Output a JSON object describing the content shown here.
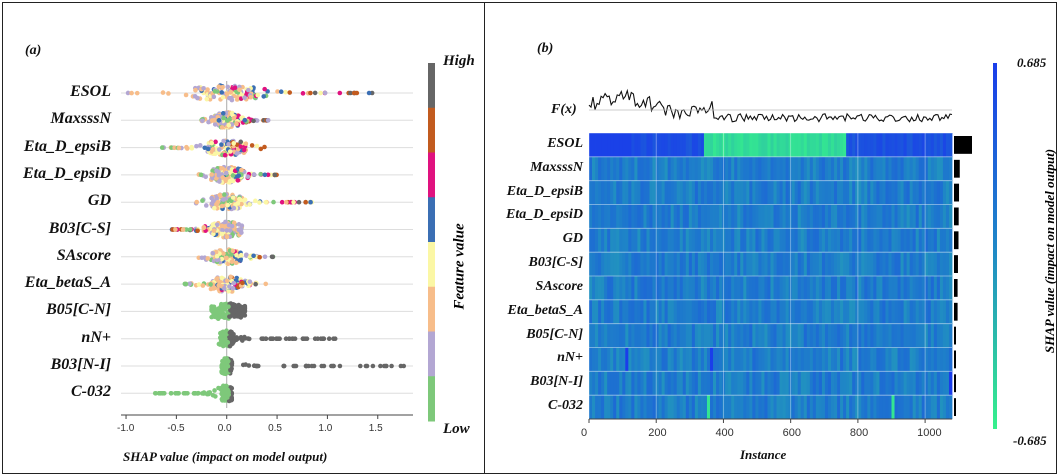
{
  "panel_a": {
    "letter": "(a)",
    "colorbar": {
      "high": "High",
      "low": "Low",
      "title": "Feature value",
      "colors": [
        "#7ec87a",
        "#b3a7d3",
        "#f7bd8a",
        "#fbf7a5",
        "#3b6fb4",
        "#e0127f",
        "#c25b1f",
        "#666666"
      ]
    },
    "chart_data": {
      "type": "scatter",
      "subtype": "shap-beeswarm",
      "xlabel": "SHAP value (impact on model output)",
      "xlim": [
        -1.05,
        1.85
      ],
      "xticks": [
        -1.0,
        -0.5,
        0.0,
        0.5,
        1.0,
        1.5
      ],
      "xtick_labels": [
        "-1.0",
        "-0.5",
        "0.0",
        "0.5",
        "1.0",
        "1.5"
      ],
      "features": [
        {
          "name": "ESOL",
          "min": -0.98,
          "max": 1.48,
          "spread": 0.9
        },
        {
          "name": "MaxsssN",
          "min": -0.25,
          "max": 0.42,
          "spread": 0.35
        },
        {
          "name": "Eta_D_epsiB",
          "min": -0.65,
          "max": 0.38,
          "spread": 0.55
        },
        {
          "name": "Eta_D_epsiD",
          "min": -0.28,
          "max": 0.52,
          "spread": 0.45
        },
        {
          "name": "GD",
          "min": -0.32,
          "max": 0.85,
          "spread": 0.45
        },
        {
          "name": "B03[C-S]",
          "min": -0.55,
          "max": 0.15,
          "spread": 0.45
        },
        {
          "name": "SAscore",
          "min": -0.3,
          "max": 0.48,
          "spread": 0.4
        },
        {
          "name": "Eta_betaS_A",
          "min": -0.42,
          "max": 0.45,
          "spread": 0.45
        },
        {
          "name": "B05[C-N]",
          "min": -0.15,
          "max": 0.18,
          "spread": 0.6
        },
        {
          "name": "nN+",
          "min": -0.08,
          "max": 1.12,
          "spread": 0.2
        },
        {
          "name": "B03[N-I]",
          "min": -0.05,
          "max": 1.78,
          "spread": 0.15
        },
        {
          "name": "C-032",
          "min": -0.72,
          "max": 0.05,
          "spread": 0.15
        }
      ]
    }
  },
  "panel_b": {
    "letter": "(b)",
    "fx_label": "F(x)",
    "colorbar": {
      "max": "0.685",
      "min": "-0.685",
      "title": "SHAP value (impact on model output)",
      "top_color": "#1a3dea",
      "bottom_color": "#36f18c"
    },
    "chart_data": {
      "type": "heatmap",
      "xlabel": "Instance",
      "xlim": [
        0,
        1080
      ],
      "xticks": [
        0,
        200,
        400,
        600,
        800,
        1000
      ],
      "xtick_labels": [
        "0",
        "200",
        "400",
        "600",
        "800",
        "1000"
      ],
      "rows": [
        "ESOL",
        "MaxsssN",
        "Eta_D_epsiB",
        "Eta_D_epsiD",
        "GD",
        "B03[C-S]",
        "SAscore",
        "Eta_betaS_A",
        "B05[C-N]",
        "nN+",
        "B03[N-I]",
        "C-032"
      ],
      "importance": [
        1.0,
        0.32,
        0.28,
        0.26,
        0.25,
        0.22,
        0.2,
        0.2,
        0.1,
        0.08,
        0.07,
        0.05
      ]
    }
  }
}
